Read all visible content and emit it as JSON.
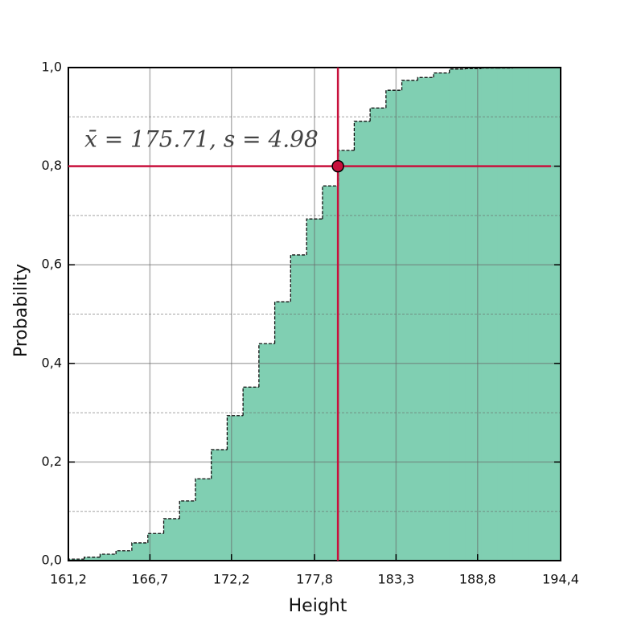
{
  "chart_data": {
    "type": "histogram",
    "cumulative": true,
    "xlabel": "Height",
    "ylabel": "Probability",
    "bins": [
      161.2,
      162.27,
      163.34,
      164.41,
      165.48,
      166.56,
      167.63,
      168.7,
      169.77,
      170.84,
      171.91,
      172.98,
      174.05,
      175.12,
      176.19,
      177.27,
      178.34,
      179.41,
      180.48,
      181.55,
      182.62,
      183.69,
      184.76,
      185.83,
      186.9,
      187.97,
      189.05,
      190.12,
      191.19,
      192.26,
      193.33,
      194.4
    ],
    "values": [
      0.003,
      0.007,
      0.013,
      0.02,
      0.036,
      0.055,
      0.085,
      0.121,
      0.166,
      0.225,
      0.294,
      0.352,
      0.44,
      0.525,
      0.62,
      0.693,
      0.76,
      0.832,
      0.891,
      0.918,
      0.954,
      0.974,
      0.98,
      0.989,
      0.997,
      0.998,
      0.999,
      0.999,
      1.0,
      1.0,
      1.0
    ],
    "color": "#80cfb2",
    "edge_color": "#111111",
    "xlim": [
      161.2,
      194.4
    ],
    "ylim": [
      0,
      1
    ],
    "xticks": [
      {
        "value": 161.2,
        "label": "161,2"
      },
      {
        "value": 166.7,
        "label": "166,7"
      },
      {
        "value": 172.2,
        "label": "172,2"
      },
      {
        "value": 177.8,
        "label": "177,8"
      },
      {
        "value": 183.3,
        "label": "183,3"
      },
      {
        "value": 188.8,
        "label": "188,8"
      },
      {
        "value": 194.4,
        "label": "194,4"
      }
    ],
    "yticks": [
      {
        "value": 0,
        "label": "0,0"
      },
      {
        "value": 0.2,
        "label": "0,2"
      },
      {
        "value": 0.4,
        "label": "0,4"
      },
      {
        "value": 0.6,
        "label": "0,6"
      },
      {
        "value": 0.8,
        "label": "0,8"
      },
      {
        "value": 1,
        "label": "1,0"
      }
    ],
    "yminorticks": [
      0.1,
      0.3,
      0.5,
      0.7,
      0.9
    ],
    "grid": true,
    "marker": {
      "x": 179.38,
      "y": 0.8,
      "color": "#c8103c"
    },
    "annotation": "x̄ = 175.71, s = 4.98"
  }
}
